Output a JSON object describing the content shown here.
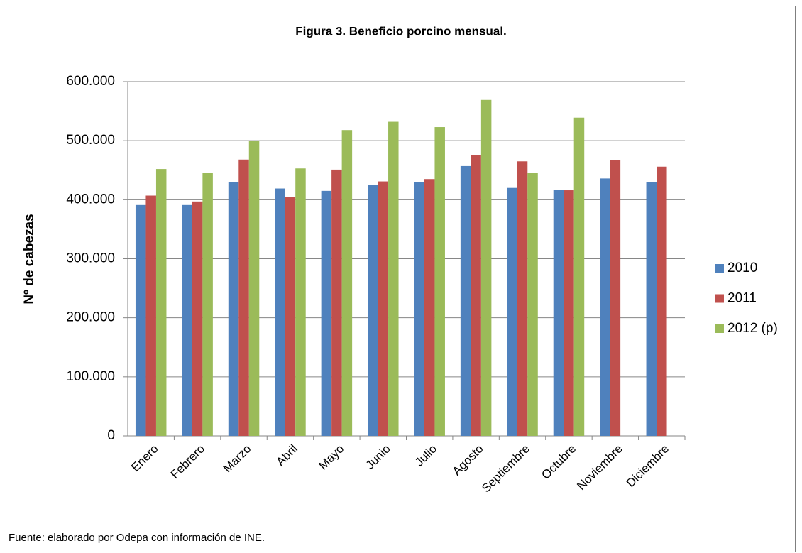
{
  "chart_data": {
    "type": "bar",
    "title": "Figura 3. Beneficio porcino mensual.",
    "y_label": "Nº de cabezas",
    "source": "Fuente: elaborado por Odepa con información de INE.",
    "categories": [
      "Enero",
      "Febrero",
      "Marzo",
      "Abril",
      "Mayo",
      "Junio",
      "Julio",
      "Agosto",
      "Septiembre",
      "Octubre",
      "Noviembre",
      "Diciembre"
    ],
    "series": [
      {
        "name": "2010",
        "color": "#4f81bd",
        "values": [
          391000,
          391000,
          430000,
          419000,
          415000,
          425000,
          430000,
          457000,
          420000,
          417000,
          436000,
          430000
        ]
      },
      {
        "name": "2011",
        "color": "#c0504d",
        "values": [
          407000,
          397000,
          468000,
          404000,
          451000,
          431000,
          435000,
          475000,
          465000,
          416000,
          467000,
          456000
        ]
      },
      {
        "name": "2012 (p)",
        "color": "#9bbb59",
        "values": [
          452000,
          446000,
          500000,
          453000,
          518000,
          532000,
          523000,
          569000,
          446000,
          539000,
          null,
          null
        ]
      }
    ],
    "ylim": [
      0,
      600000
    ],
    "yticks": [
      0,
      {
        "value": 100000,
        "label": "100.000"
      },
      {
        "value": 200000,
        "label": "200.000"
      },
      {
        "value": 300000,
        "label": "300.000"
      },
      {
        "value": 400000,
        "label": "400.000"
      },
      {
        "value": 500000,
        "label": "500.000"
      },
      {
        "value": 600000,
        "label": "600.000"
      }
    ],
    "grid": true,
    "legend": "right"
  }
}
